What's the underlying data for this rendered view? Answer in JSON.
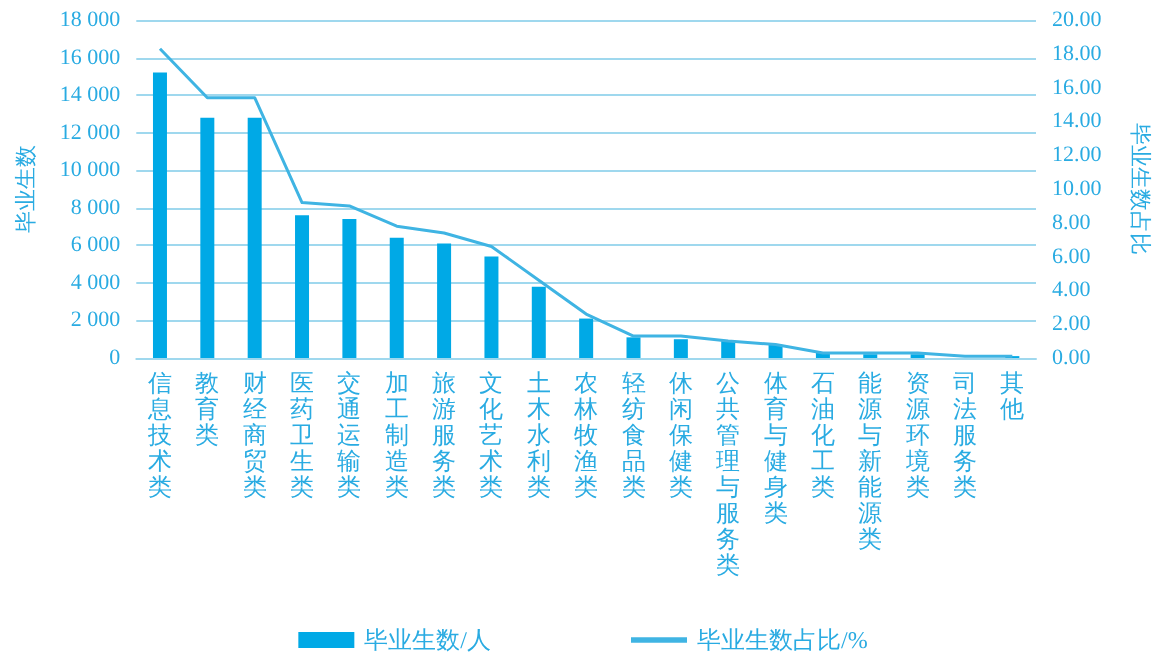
{
  "chart_data": {
    "type": "bar",
    "ylabel": "毕业生数",
    "y2label": "毕业生数占比",
    "categories": [
      "信息技术类",
      "教育类",
      "财经商贸类",
      "医药卫生类",
      "交通运输类",
      "加工制造类",
      "旅游服务类",
      "文化艺术类",
      "土木水利类",
      "农林牧渔类",
      "轻纺食品类",
      "休闲保健类",
      "公共管理与服务类",
      "体育与健身类",
      "石油化工类",
      "能源与新能源类",
      "资源环境类",
      "司法服务类",
      "其他"
    ],
    "series": [
      {
        "name": "毕业生数/人",
        "color": "#00a9e6",
        "values": [
          15200,
          12800,
          12800,
          7600,
          7400,
          6400,
          6100,
          5400,
          3800,
          2100,
          1100,
          1000,
          900,
          700,
          300,
          200,
          200,
          null,
          100
        ]
      },
      {
        "name": "毕业生数占比/%",
        "type": "line",
        "axis": "y2",
        "color": "#3fb4e3",
        "values": [
          18.3,
          15.4,
          15.4,
          9.2,
          9.0,
          7.8,
          7.4,
          6.6,
          4.6,
          2.6,
          1.3,
          1.3,
          1.0,
          0.8,
          0.3,
          0.3,
          0.3,
          0.1,
          0.1
        ]
      }
    ],
    "ylim": [
      0,
      18000
    ],
    "yticks": [
      0,
      2000,
      4000,
      6000,
      8000,
      10000,
      12000,
      14000,
      16000,
      18000
    ],
    "y2lim": [
      0,
      20
    ],
    "y2ticks": [
      {
        "value": 0,
        "label": "0.00"
      },
      {
        "value": 2,
        "label": "2.00"
      },
      {
        "value": 4,
        "label": "4.00"
      },
      {
        "value": 6,
        "label": "6.00"
      },
      {
        "value": 8,
        "label": "8.00"
      },
      {
        "value": 10,
        "label": "10.00"
      },
      {
        "value": 12,
        "label": "12.00"
      },
      {
        "value": 14,
        "label": "14.00"
      },
      {
        "value": 16,
        "label": "16.00"
      },
      {
        "value": 18,
        "label": "18.00"
      },
      {
        "value": 20,
        "label": "20.00"
      }
    ],
    "grid": "y",
    "legend": "bottom",
    "marker": "none",
    "line_style": "solid"
  }
}
